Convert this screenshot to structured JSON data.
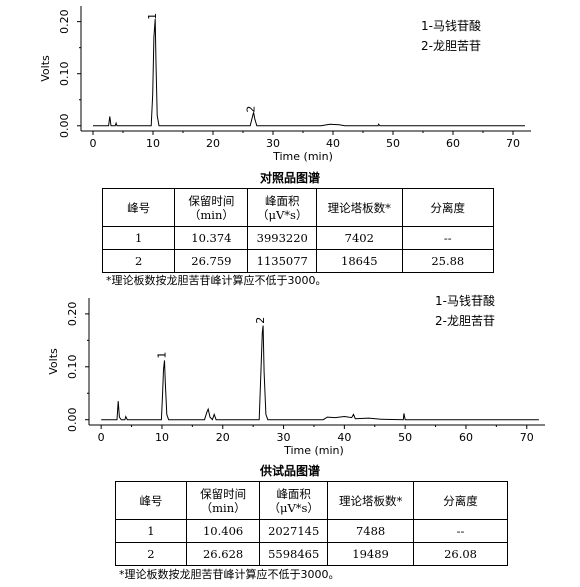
{
  "chart_data": [
    {
      "type": "line",
      "title": "",
      "xlabel": "Time (min)",
      "ylabel": "Volts",
      "xlim": [
        -2,
        73
      ],
      "ylim": [
        -0.01,
        0.23
      ],
      "xticks": [
        0,
        10,
        20,
        30,
        40,
        50,
        60,
        70
      ],
      "yticks": [
        0.0,
        0.1,
        0.2
      ],
      "ytick_labels": [
        "0.00",
        "0.10",
        "0.20"
      ],
      "legend": [
        "1-马钱苷酸",
        "2-龙胆苦苷"
      ],
      "peak_labels": [
        {
          "text": "1",
          "x": 10.37,
          "y": 0.21
        },
        {
          "text": "2",
          "x": 26.76,
          "y": 0.032
        }
      ],
      "series": [
        {
          "values": [
            [
              0,
              0
            ],
            [
              2.6,
              0
            ],
            [
              2.8,
              0.018
            ],
            [
              3.0,
              0
            ],
            [
              3.7,
              0
            ],
            [
              3.85,
              0.005
            ],
            [
              4.0,
              0
            ],
            [
              9.7,
              0
            ],
            [
              9.95,
              0.06
            ],
            [
              10.15,
              0.17
            ],
            [
              10.37,
              0.205
            ],
            [
              10.5,
              0.12
            ],
            [
              10.7,
              0.02
            ],
            [
              11.0,
              0
            ],
            [
              26.2,
              0
            ],
            [
              26.5,
              0.014
            ],
            [
              26.76,
              0.026
            ],
            [
              26.95,
              0.014
            ],
            [
              27.3,
              0
            ],
            [
              38,
              0
            ],
            [
              39.5,
              0.003
            ],
            [
              41,
              0.002
            ],
            [
              42,
              0
            ],
            [
              47.5,
              0
            ],
            [
              47.6,
              0.003
            ],
            [
              47.8,
              0
            ],
            [
              72,
              0
            ]
          ]
        }
      ]
    },
    {
      "type": "line",
      "title": "",
      "xlabel": "Time (min)",
      "ylabel": "Volts",
      "xlim": [
        -2,
        73
      ],
      "ylim": [
        -0.01,
        0.23
      ],
      "xticks": [
        0,
        10,
        20,
        30,
        40,
        50,
        60,
        70
      ],
      "yticks": [
        0.0,
        0.1,
        0.2
      ],
      "ytick_labels": [
        "0.00",
        "0.10",
        "0.20"
      ],
      "legend": [
        "1-马钱苷酸",
        "2-龙胆苦苷"
      ],
      "peak_labels": [
        {
          "text": "1",
          "x": 10.41,
          "y": 0.122
        },
        {
          "text": "2",
          "x": 26.63,
          "y": 0.188
        }
      ],
      "series": [
        {
          "values": [
            [
              0,
              0
            ],
            [
              2.6,
              0
            ],
            [
              2.8,
              0.035
            ],
            [
              3.0,
              0.005
            ],
            [
              3.3,
              0
            ],
            [
              3.9,
              0
            ],
            [
              4.05,
              0.006
            ],
            [
              4.3,
              0
            ],
            [
              9.9,
              0
            ],
            [
              10.1,
              0.05
            ],
            [
              10.25,
              0.095
            ],
            [
              10.41,
              0.112
            ],
            [
              10.55,
              0.07
            ],
            [
              10.8,
              0.01
            ],
            [
              11.1,
              0
            ],
            [
              17.0,
              0
            ],
            [
              17.4,
              0.015
            ],
            [
              17.6,
              0.02
            ],
            [
              17.9,
              0.005
            ],
            [
              18.3,
              0
            ],
            [
              18.6,
              0.01
            ],
            [
              18.9,
              0
            ],
            [
              26.0,
              0
            ],
            [
              26.3,
              0.1
            ],
            [
              26.5,
              0.165
            ],
            [
              26.63,
              0.178
            ],
            [
              26.8,
              0.09
            ],
            [
              27.1,
              0.01
            ],
            [
              27.4,
              0
            ],
            [
              36.5,
              0
            ],
            [
              37.2,
              0.005
            ],
            [
              38.5,
              0.004
            ],
            [
              40,
              0.006
            ],
            [
              41.2,
              0.004
            ],
            [
              41.5,
              0.01
            ],
            [
              41.8,
              0.002
            ],
            [
              44,
              0.003
            ],
            [
              46,
              0.001
            ],
            [
              49.7,
              0
            ],
            [
              49.8,
              0.012
            ],
            [
              50.0,
              0
            ],
            [
              72,
              0
            ]
          ]
        }
      ]
    }
  ],
  "caption1": "对照品图谱",
  "caption2": "供试品图谱",
  "table_headers": {
    "peak": "峰号",
    "rt_line1": "保留时间",
    "rt_line2": "（min）",
    "area_line1": "峰面积",
    "area_line2": "（μV*s）",
    "plates": "理论塔板数*",
    "resolution": "分离度"
  },
  "table1_rows": [
    {
      "peak": "1",
      "rt": "10.374",
      "area": "3993220",
      "plates": "7402",
      "res": "--"
    },
    {
      "peak": "2",
      "rt": "26.759",
      "area": "1135077",
      "plates": "18645",
      "res": "25.88"
    }
  ],
  "table2_rows": [
    {
      "peak": "1",
      "rt": "10.406",
      "area": "2027145",
      "plates": "7488",
      "res": "--"
    },
    {
      "peak": "2",
      "rt": "26.628",
      "area": "5598465",
      "plates": "19489",
      "res": "26.08"
    }
  ],
  "note1": "*理论板数按龙胆苦苷峰计算应不低于3000。",
  "note2": "*理论板数按龙胆苦苷峰计算应不低于3000。"
}
